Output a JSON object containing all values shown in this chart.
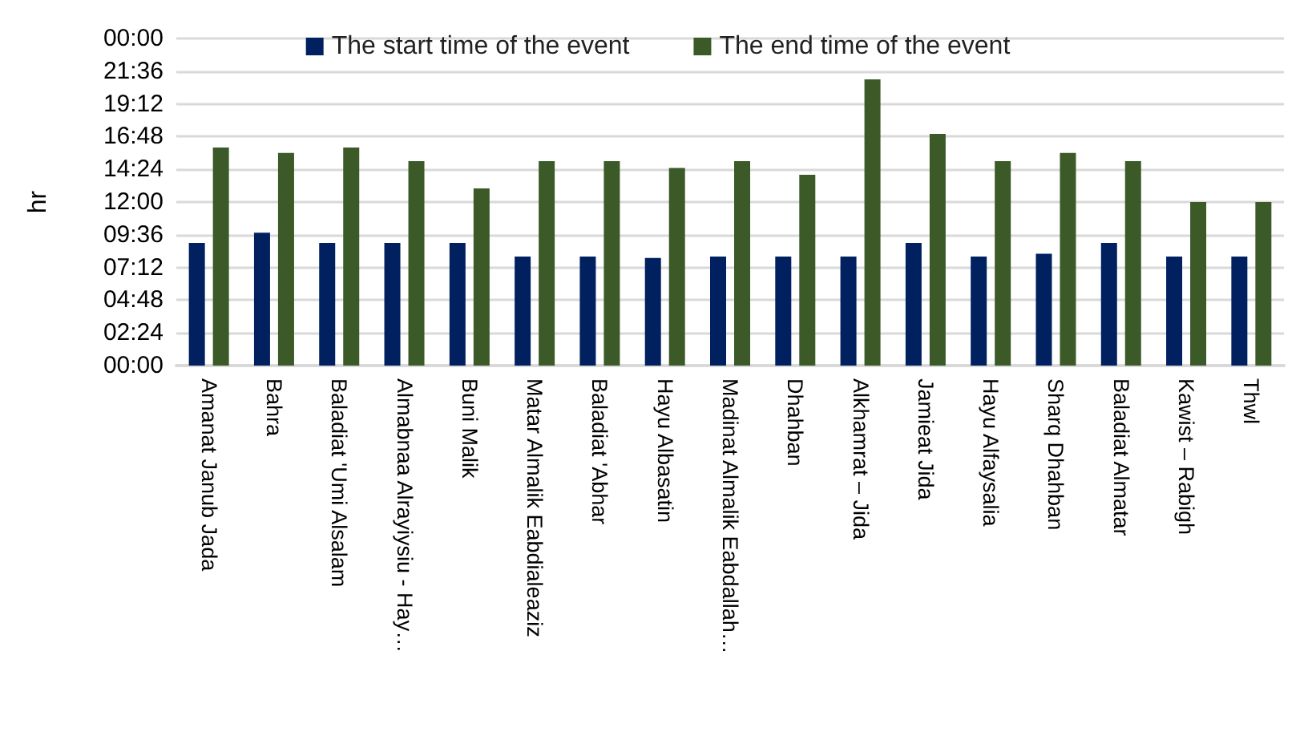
{
  "chart_data": {
    "type": "bar",
    "ylabel": "hr",
    "categories": [
      "Amanat Janub Jada",
      "Bahra",
      "Baladiat 'Umi Alsalam",
      "Almabnaa Alrayiysiu - Hay…",
      "Buni Malik",
      "Matar Almalik Eabdialeaziz",
      "Baladiat 'Abhar",
      "Hayu Albasatin",
      "Madinat Almalik Eabdallah…",
      "Dhahban",
      "Alkhamrat – Jida",
      "Jamieat Jida",
      "Hayu Alfaysalia",
      "Sharq Dhahban",
      "Baladiat Almatar",
      "Kawist – Rabigh",
      "Thwl"
    ],
    "series": [
      {
        "name": "The start time of the event",
        "color": "#002060",
        "values": [
          9,
          9.75,
          9,
          9,
          9,
          8,
          8,
          7.9,
          8,
          8,
          8,
          9,
          8,
          8.2,
          9,
          8,
          8
        ]
      },
      {
        "name": "The end time of the event",
        "color": "#3b5a27",
        "values": [
          16,
          15.6,
          16,
          15,
          13,
          15,
          15,
          14.5,
          15,
          14,
          21,
          17,
          15,
          15.6,
          15,
          12,
          12
        ]
      }
    ],
    "ylim": [
      0,
      24
    ],
    "yticks": [
      {
        "value": 0,
        "label": "00:00"
      },
      {
        "value": 2.4,
        "label": "02:24"
      },
      {
        "value": 4.8,
        "label": "04:48"
      },
      {
        "value": 7.2,
        "label": "07:12"
      },
      {
        "value": 9.6,
        "label": "09:36"
      },
      {
        "value": 12,
        "label": "12:00"
      },
      {
        "value": 14.4,
        "label": "14:24"
      },
      {
        "value": 16.8,
        "label": "16:48"
      },
      {
        "value": 19.2,
        "label": "19:12"
      },
      {
        "value": 21.6,
        "label": "21:36"
      },
      {
        "value": 24,
        "label": "00:00"
      }
    ],
    "grid": "y",
    "legend": "top"
  }
}
